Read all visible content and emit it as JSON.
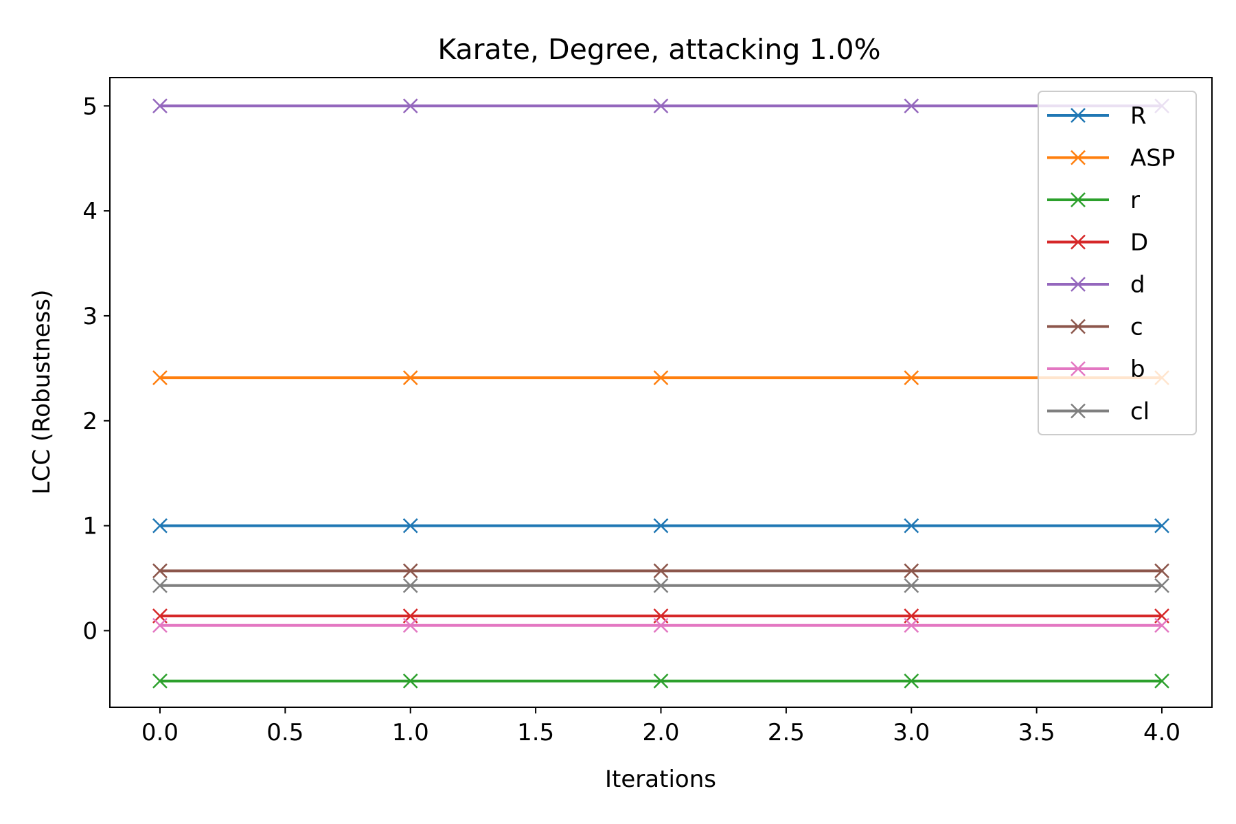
{
  "chart_data": {
    "type": "line",
    "title": "Karate, Degree, attacking 1.0%",
    "xlabel": "Iterations",
    "ylabel": "LCC (Robustness)",
    "x": [
      0,
      1,
      2,
      3,
      4
    ],
    "xlim": [
      -0.2,
      4.2
    ],
    "ylim": [
      -0.73,
      5.27
    ],
    "xticks": [
      0.0,
      0.5,
      1.0,
      1.5,
      2.0,
      2.5,
      3.0,
      3.5,
      4.0
    ],
    "xtick_labels": [
      "0.0",
      "0.5",
      "1.0",
      "1.5",
      "2.0",
      "2.5",
      "3.0",
      "3.5",
      "4.0"
    ],
    "yticks": [
      0,
      1,
      2,
      3,
      4,
      5
    ],
    "ytick_labels": [
      "0",
      "1",
      "2",
      "3",
      "4",
      "5"
    ],
    "grid": false,
    "legend_position": "top-right",
    "marker": "x",
    "series": [
      {
        "name": "R",
        "color": "#1f77b4",
        "values": [
          1.0,
          1.0,
          1.0,
          1.0,
          1.0
        ]
      },
      {
        "name": "ASP",
        "color": "#ff7f0e",
        "values": [
          2.41,
          2.41,
          2.41,
          2.41,
          2.41
        ]
      },
      {
        "name": "r",
        "color": "#2ca02c",
        "values": [
          -0.48,
          -0.48,
          -0.48,
          -0.48,
          -0.48
        ]
      },
      {
        "name": "D",
        "color": "#d62728",
        "values": [
          0.14,
          0.14,
          0.14,
          0.14,
          0.14
        ]
      },
      {
        "name": "d",
        "color": "#9467bd",
        "values": [
          5.0,
          5.0,
          5.0,
          5.0,
          5.0
        ]
      },
      {
        "name": "c",
        "color": "#8c564b",
        "values": [
          0.57,
          0.57,
          0.57,
          0.57,
          0.57
        ]
      },
      {
        "name": "b",
        "color": "#e377c2",
        "values": [
          0.05,
          0.05,
          0.05,
          0.05,
          0.05
        ]
      },
      {
        "name": "cl",
        "color": "#7f7f7f",
        "values": [
          0.43,
          0.43,
          0.43,
          0.43,
          0.43
        ]
      }
    ]
  }
}
